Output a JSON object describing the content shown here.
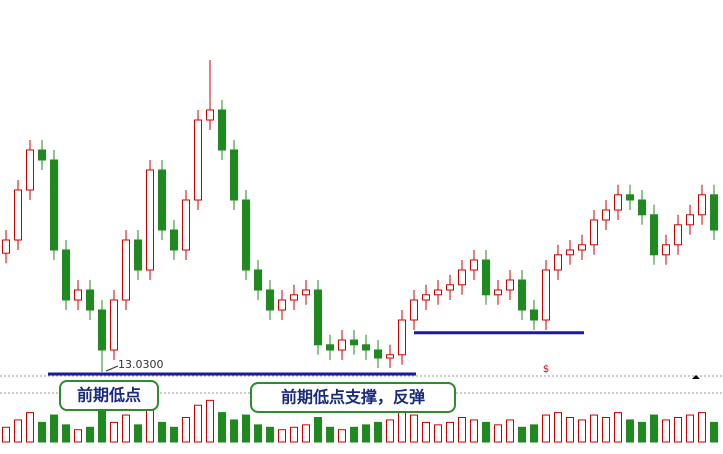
{
  "chart_data": {
    "type": "candlestick",
    "ohlc": [
      [
        16.0,
        16.58,
        15.75,
        16.33
      ],
      [
        16.33,
        17.83,
        16.08,
        17.58
      ],
      [
        17.58,
        18.83,
        17.33,
        18.58
      ],
      [
        18.58,
        18.83,
        18.08,
        18.33
      ],
      [
        18.33,
        18.58,
        15.83,
        16.08
      ],
      [
        16.08,
        16.33,
        14.58,
        14.83
      ],
      [
        14.83,
        15.33,
        14.58,
        15.08
      ],
      [
        15.08,
        15.33,
        14.33,
        14.58
      ],
      [
        14.58,
        14.83,
        13.03,
        13.58
      ],
      [
        13.58,
        15.08,
        13.33,
        14.83
      ],
      [
        14.83,
        16.58,
        14.58,
        16.33
      ],
      [
        16.33,
        16.58,
        15.33,
        15.58
      ],
      [
        15.58,
        18.33,
        15.33,
        18.08
      ],
      [
        18.08,
        18.33,
        16.33,
        16.58
      ],
      [
        16.58,
        16.83,
        15.83,
        16.08
      ],
      [
        16.08,
        17.58,
        15.83,
        17.33
      ],
      [
        17.33,
        19.58,
        17.08,
        19.33
      ],
      [
        19.33,
        20.83,
        19.08,
        19.58
      ],
      [
        19.58,
        19.83,
        18.33,
        18.58
      ],
      [
        18.58,
        18.83,
        17.08,
        17.33
      ],
      [
        17.33,
        17.58,
        15.33,
        15.58
      ],
      [
        15.58,
        15.83,
        14.83,
        15.08
      ],
      [
        15.08,
        15.33,
        14.33,
        14.58
      ],
      [
        14.58,
        15.08,
        14.33,
        14.83
      ],
      [
        14.83,
        15.21,
        14.58,
        14.96
      ],
      [
        14.96,
        15.33,
        14.71,
        15.08
      ],
      [
        15.08,
        15.33,
        13.46,
        13.71
      ],
      [
        13.71,
        13.96,
        13.33,
        13.58
      ],
      [
        13.58,
        14.08,
        13.33,
        13.83
      ],
      [
        13.83,
        14.08,
        13.46,
        13.71
      ],
      [
        13.71,
        13.96,
        13.33,
        13.58
      ],
      [
        13.58,
        13.83,
        13.13,
        13.38
      ],
      [
        13.38,
        13.71,
        13.13,
        13.46
      ],
      [
        13.46,
        14.58,
        13.21,
        14.33
      ],
      [
        14.33,
        15.08,
        14.08,
        14.83
      ],
      [
        14.83,
        15.21,
        14.58,
        14.96
      ],
      [
        14.96,
        15.33,
        14.71,
        15.08
      ],
      [
        15.08,
        15.46,
        14.83,
        15.21
      ],
      [
        15.21,
        15.83,
        14.96,
        15.58
      ],
      [
        15.58,
        16.08,
        15.33,
        15.83
      ],
      [
        15.83,
        16.08,
        14.71,
        14.96
      ],
      [
        14.96,
        15.33,
        14.71,
        15.08
      ],
      [
        15.08,
        15.58,
        14.83,
        15.33
      ],
      [
        15.33,
        15.58,
        14.33,
        14.58
      ],
      [
        14.58,
        14.83,
        14.08,
        14.33
      ],
      [
        14.33,
        15.83,
        14.08,
        15.58
      ],
      [
        15.58,
        16.21,
        15.33,
        15.96
      ],
      [
        15.96,
        16.33,
        15.71,
        16.08
      ],
      [
        16.08,
        16.46,
        15.83,
        16.21
      ],
      [
        16.21,
        17.08,
        15.96,
        16.83
      ],
      [
        16.83,
        17.33,
        16.58,
        17.08
      ],
      [
        17.08,
        17.71,
        16.83,
        17.46
      ],
      [
        17.46,
        17.71,
        17.08,
        17.33
      ],
      [
        17.33,
        17.58,
        16.71,
        16.96
      ],
      [
        16.96,
        17.21,
        15.71,
        15.96
      ],
      [
        15.96,
        16.46,
        15.71,
        16.21
      ],
      [
        16.21,
        16.96,
        15.96,
        16.71
      ],
      [
        16.71,
        17.21,
        16.46,
        16.96
      ],
      [
        16.96,
        17.71,
        16.71,
        17.46
      ],
      [
        17.46,
        17.71,
        16.33,
        16.58
      ]
    ],
    "volume": [
      30,
      45,
      60,
      40,
      55,
      35,
      25,
      30,
      70,
      40,
      55,
      35,
      65,
      40,
      30,
      50,
      75,
      85,
      60,
      45,
      55,
      35,
      30,
      25,
      30,
      35,
      50,
      30,
      25,
      30,
      35,
      40,
      45,
      60,
      55,
      40,
      35,
      40,
      50,
      45,
      40,
      35,
      45,
      30,
      35,
      55,
      60,
      50,
      45,
      55,
      50,
      60,
      45,
      40,
      55,
      45,
      50,
      55,
      60,
      40
    ],
    "ylim": [
      12.83,
      22.33
    ],
    "vlim": [
      0,
      100
    ],
    "up_color": "#cc0000",
    "down_color": "#1f8a1f",
    "low_label": {
      "value": 13.03,
      "label": "13.0300"
    },
    "marker": "$",
    "support_lines": [
      {
        "value": 13.03,
        "start": 6,
        "end": 34,
        "color": "#1a1aa0"
      },
      {
        "value": 14.06,
        "start": 34,
        "end": 48,
        "color": "#1a1aa0"
      }
    ],
    "annotations": [
      "前期低点",
      "前期低点支撑，反弹"
    ]
  }
}
